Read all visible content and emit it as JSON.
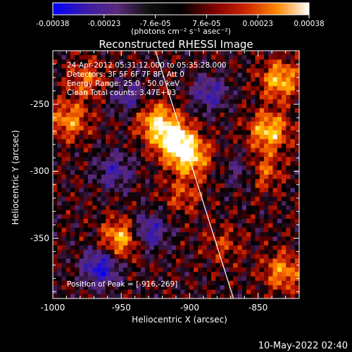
{
  "colorbar": {
    "tick_labels": [
      "-0.00038",
      "-0.00023",
      "-7.6e-05",
      "7.6e-05",
      "0.00023",
      "0.00038"
    ],
    "unit_label": "(photons cm⁻² s⁻¹ asec⁻²)",
    "range": [
      -0.00038,
      0.00038
    ],
    "colormap": [
      "#0000ff",
      "#3a1aa8",
      "#5a2a7a",
      "#000000",
      "#7a0000",
      "#cc2200",
      "#ff7700",
      "#ffd000",
      "#ffffff"
    ]
  },
  "chart_data": {
    "type": "heatmap",
    "title": "Reconstructed RHESSI Image",
    "xlabel": "Heliocentric X (arcsec)",
    "ylabel": "Heliocentric Y (arcsec)",
    "xlim": [
      -1000,
      -820
    ],
    "ylim": [
      -395,
      -210
    ],
    "xticks": [
      -1000,
      -950,
      -900,
      -850
    ],
    "yticks": [
      -250,
      -300,
      -350
    ],
    "xtick_labels": [
      "-1000",
      "-950",
      "-900",
      "-850"
    ],
    "ytick_labels": [
      "-250",
      "-300",
      "-350"
    ],
    "limb_line": {
      "x": [
        -925,
        -868
      ],
      "y": [
        -210,
        -395
      ]
    },
    "peak": {
      "x": -916,
      "y": -269
    },
    "annotations": [
      "24-Apr-2012 05:31:12.000 to 05:35:28.000",
      "Detectors: 3F 5F 6F 7F 8F, Att 0",
      "Energy Range: 25.0 - 50.0 keV",
      "Clean    Total counts: 3.47E+03",
      "Position of Peak = [-916,-269]"
    ],
    "bright_regions": [
      {
        "x": -912,
        "y": -276,
        "level": 1.0
      },
      {
        "x": -900,
        "y": -289,
        "level": 0.85
      },
      {
        "x": -925,
        "y": -262,
        "level": 0.7
      },
      {
        "x": -988,
        "y": -262,
        "level": 0.6
      },
      {
        "x": -975,
        "y": -232,
        "level": 0.45
      },
      {
        "x": -842,
        "y": -270,
        "level": 0.8
      },
      {
        "x": -834,
        "y": -232,
        "level": 0.75
      },
      {
        "x": -848,
        "y": -300,
        "level": 0.55
      },
      {
        "x": -950,
        "y": -350,
        "level": 0.75
      },
      {
        "x": -905,
        "y": -318,
        "level": 0.35
      },
      {
        "x": -832,
        "y": -375,
        "level": 0.6
      },
      {
        "x": -875,
        "y": -355,
        "level": 0.3
      }
    ],
    "dark_regions": [
      {
        "x": -965,
        "y": -372,
        "level": -0.8
      },
      {
        "x": -930,
        "y": -345,
        "level": -0.65
      },
      {
        "x": -885,
        "y": -242,
        "level": -0.55
      },
      {
        "x": -955,
        "y": -300,
        "level": -0.5
      },
      {
        "x": -860,
        "y": -300,
        "level": -0.45
      },
      {
        "x": -945,
        "y": -245,
        "level": -0.45
      }
    ]
  },
  "footer": {
    "date": "10-May-2022 02:40"
  }
}
